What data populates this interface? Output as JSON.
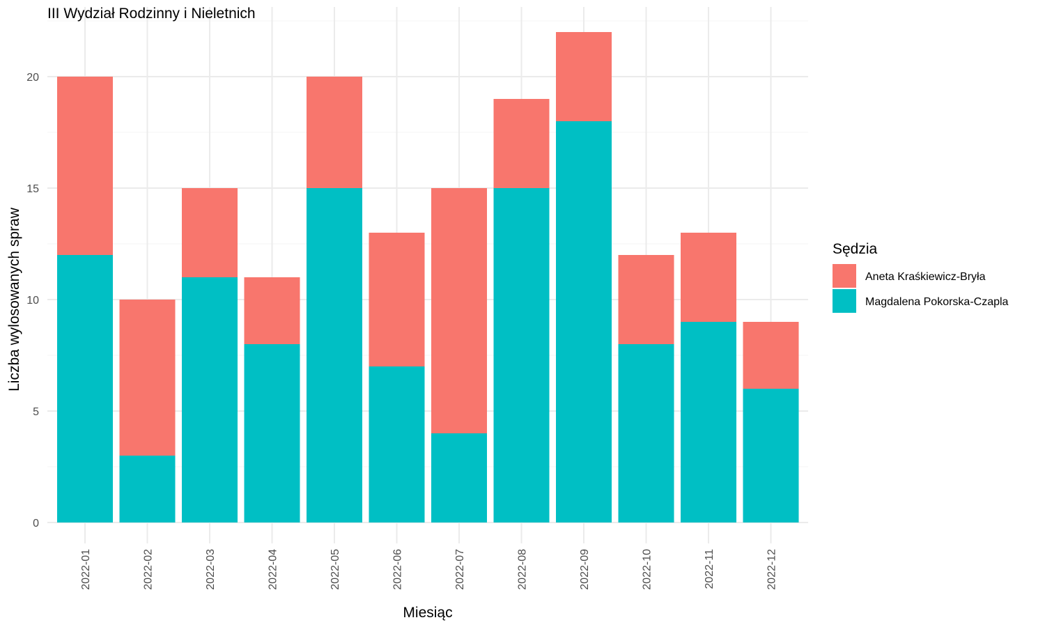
{
  "chart_data": {
    "type": "bar",
    "stacked": true,
    "title": "III Wydział Rodzinny i Nieletnich",
    "xlabel": "Miesiąc",
    "ylabel": "Liczba wylosowanych spraw",
    "categories": [
      "2022-01",
      "2022-02",
      "2022-03",
      "2022-04",
      "2022-05",
      "2022-06",
      "2022-07",
      "2022-08",
      "2022-09",
      "2022-10",
      "2022-11",
      "2022-12"
    ],
    "series": [
      {
        "name": "Magdalena Pokorska-Czapla",
        "color": "#00BFC4",
        "values": [
          12,
          3,
          11,
          8,
          15,
          7,
          4,
          15,
          18,
          8,
          9,
          6
        ]
      },
      {
        "name": "Aneta Kraśkiewicz-Bryła",
        "color": "#F8766D",
        "values": [
          8,
          7,
          4,
          3,
          5,
          6,
          11,
          4,
          4,
          4,
          4,
          3
        ]
      }
    ],
    "yticks": [
      "0",
      "5",
      "10",
      "15",
      "20"
    ],
    "ylim": [
      0,
      22
    ],
    "grid": true,
    "legend": {
      "title": "Sędzia",
      "position": "right",
      "entries": [
        "Aneta Kraśkiewicz-Bryła",
        "Magdalena Pokorska-Czapla"
      ]
    }
  }
}
